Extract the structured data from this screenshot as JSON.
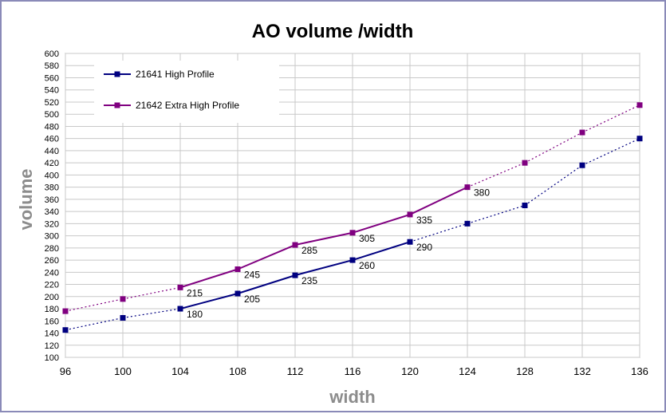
{
  "chart_data": {
    "type": "line",
    "title": "AO volume /width",
    "xlabel": "width",
    "ylabel": "volume",
    "x": [
      96,
      100,
      104,
      108,
      112,
      116,
      120,
      124,
      128,
      132,
      136
    ],
    "xlim": [
      96,
      136
    ],
    "ylim": [
      100,
      600
    ],
    "ystep": 20,
    "grid": true,
    "legend_position": "top-left",
    "series": [
      {
        "name": "21641 High Profile",
        "color": "#000080",
        "values": [
          145,
          165,
          180,
          205,
          235,
          260,
          290,
          320,
          350,
          416,
          460
        ],
        "labeled": [
          false,
          false,
          true,
          true,
          true,
          true,
          true,
          false,
          false,
          false,
          false
        ],
        "solid_range": [
          104,
          120
        ]
      },
      {
        "name": "21642 Extra High Profile",
        "color": "#800080",
        "values": [
          176,
          196,
          215,
          245,
          285,
          305,
          335,
          380,
          420,
          470,
          515
        ],
        "labeled": [
          false,
          false,
          true,
          true,
          true,
          true,
          true,
          true,
          false,
          false,
          false
        ],
        "solid_range": [
          104,
          124
        ]
      }
    ]
  }
}
